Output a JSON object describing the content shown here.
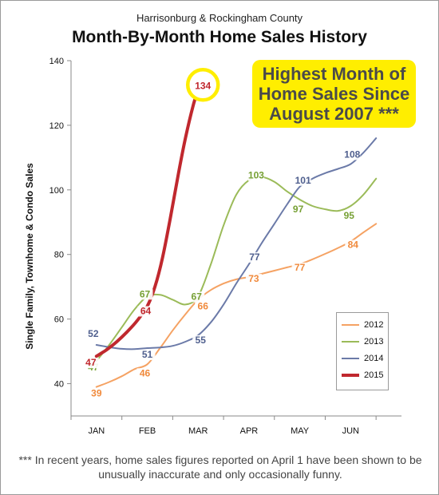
{
  "chart_data": {
    "type": "line",
    "subtitle": "Harrisonburg & Rockingham County",
    "title": "Month-By-Month Home Sales History",
    "xlabel": "",
    "ylabel": "Single Family, Townhome & Condo Sales",
    "categories": [
      "JAN",
      "FEB",
      "MAR",
      "APR",
      "MAY",
      "JUN"
    ],
    "ylim": [
      30,
      140
    ],
    "yticks": [
      40,
      60,
      80,
      100,
      120,
      140
    ],
    "grid": false,
    "legend_position": "bottom-right",
    "series": [
      {
        "name": "2012",
        "color": "#f5a263",
        "label_color": "#f08a3c",
        "values": [
          39,
          46,
          66,
          73,
          77,
          84
        ],
        "x": [
          0,
          1,
          2,
          3,
          4,
          5
        ],
        "line_x": [
          0,
          0.25,
          0.5,
          0.75,
          1,
          1.25,
          1.5,
          1.75,
          2,
          2.25,
          2.5,
          2.75,
          3,
          3.25,
          3.5,
          3.75,
          4,
          4.25,
          4.5,
          4.75,
          5,
          5.25,
          5.5
        ],
        "line_y": [
          39,
          40.5,
          42.3,
          44.5,
          46,
          51,
          56.5,
          61.5,
          66,
          69,
          71,
          72.3,
          73,
          74,
          75,
          76,
          77,
          78.5,
          80.2,
          82,
          84,
          86.8,
          89.5
        ]
      },
      {
        "name": "2013",
        "color": "#9bbb59",
        "label_color": "#77a035",
        "values": [
          47,
          67,
          67,
          103,
          97,
          95
        ],
        "x": [
          0,
          1,
          2,
          3,
          4,
          5
        ],
        "line_x": [
          0,
          0.25,
          0.5,
          0.75,
          1,
          1.25,
          1.5,
          1.75,
          2,
          2.25,
          2.5,
          2.75,
          3,
          3.25,
          3.5,
          3.75,
          4,
          4.25,
          4.5,
          4.75,
          5,
          5.25,
          5.5
        ],
        "line_y": [
          47,
          52,
          57.5,
          63,
          67,
          67.5,
          66,
          64.5,
          67,
          77,
          89,
          98.5,
          103,
          104,
          102.5,
          99.5,
          97,
          95,
          94,
          93.5,
          95,
          98.5,
          103.5
        ]
      },
      {
        "name": "2014",
        "color": "#6b7aa8",
        "label_color": "#4f5f8e",
        "values": [
          52,
          51,
          55,
          77,
          101,
          108
        ],
        "x": [
          0,
          1,
          2,
          3,
          4,
          5
        ],
        "line_x": [
          0,
          0.25,
          0.5,
          0.75,
          1,
          1.25,
          1.5,
          1.75,
          2,
          2.25,
          2.5,
          2.75,
          3,
          3.25,
          3.5,
          3.75,
          4,
          4.25,
          4.5,
          4.75,
          5,
          5.25,
          5.5
        ],
        "line_y": [
          52,
          51.3,
          50.8,
          50.7,
          51,
          51.2,
          51.7,
          53,
          55,
          59,
          64.5,
          71,
          77,
          83.5,
          89.5,
          95.5,
          101,
          103.5,
          105.2,
          106.5,
          108,
          111.5,
          116
        ]
      },
      {
        "name": "2015",
        "color": "#c0282e",
        "label_color": "#c0282e",
        "values": [
          47,
          64,
          134
        ],
        "x": [
          0,
          1,
          2
        ],
        "line_x": [
          0,
          0.2,
          0.4,
          0.6,
          0.8,
          1,
          1.15,
          1.3,
          1.45,
          1.6,
          1.75,
          1.9,
          2
        ],
        "line_y": [
          48.5,
          50.5,
          53,
          56,
          59.5,
          64,
          70,
          79,
          91,
          104,
          116,
          126,
          131
        ]
      }
    ],
    "annotations": {
      "callout_lines": [
        "Highest Month of",
        "Home Sales Since",
        "August 2007 ***"
      ],
      "highlight_label": "134",
      "footnote": "*** In recent years, home sales figures reported on April 1 have been shown to be unusually inaccurate and only occasionally funny."
    }
  }
}
